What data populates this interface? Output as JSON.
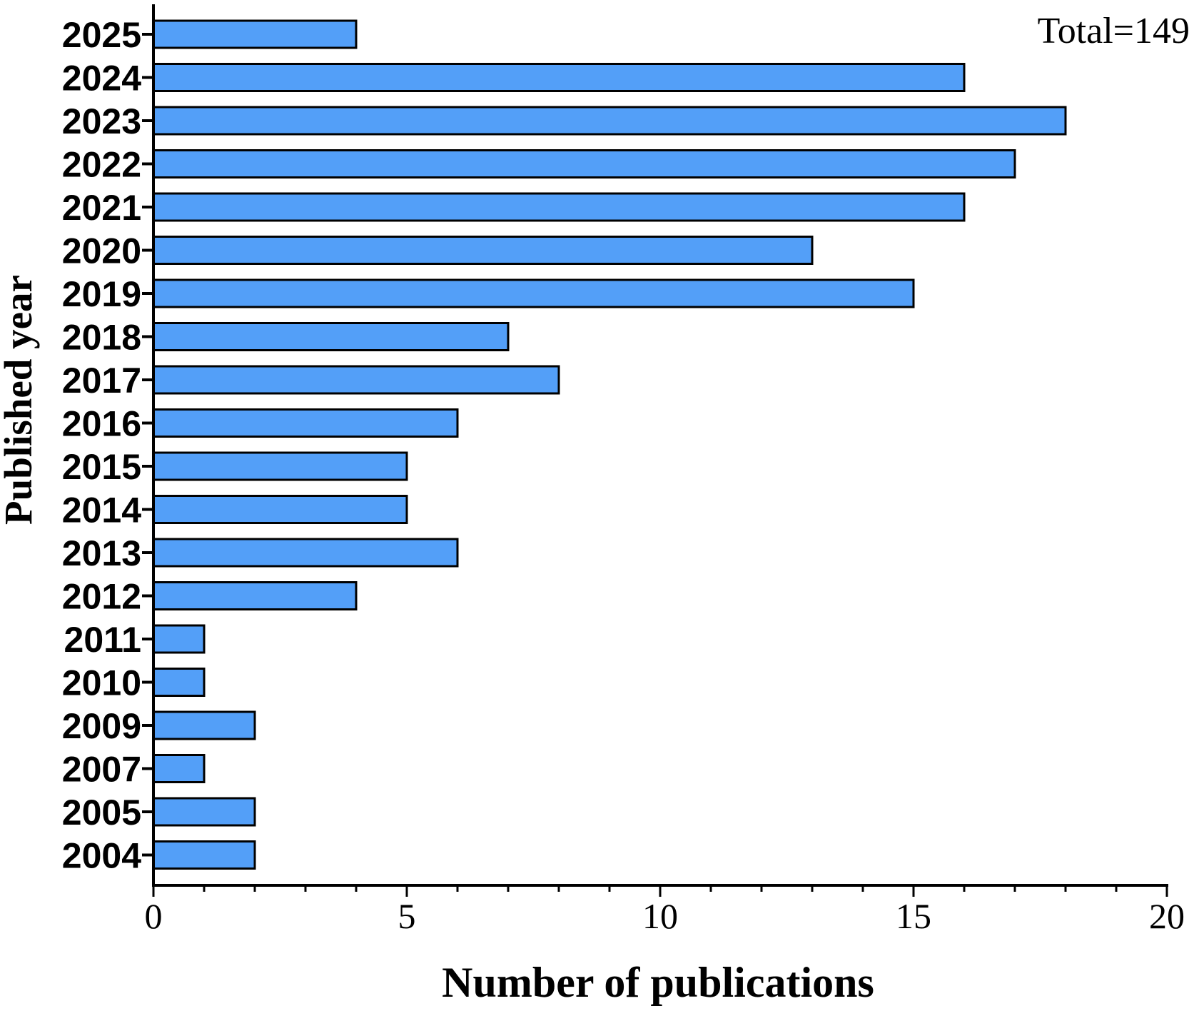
{
  "chart_data": {
    "type": "bar",
    "orientation": "horizontal",
    "categories": [
      "2025",
      "2024",
      "2023",
      "2022",
      "2021",
      "2020",
      "2019",
      "2018",
      "2017",
      "2016",
      "2015",
      "2014",
      "2013",
      "2012",
      "2011",
      "2010",
      "2009",
      "2007",
      "2005",
      "2004"
    ],
    "values": [
      4,
      16,
      18,
      17,
      16,
      13,
      15,
      7,
      8,
      6,
      5,
      5,
      6,
      4,
      1,
      1,
      2,
      1,
      2,
      2
    ],
    "xlabel": "Number of publications",
    "ylabel": "Published year",
    "xlim": [
      0,
      20
    ],
    "x_ticks": [
      "0",
      "5",
      "10",
      "15",
      "20"
    ],
    "annotation": "Total=149",
    "grid": false,
    "bar_color": "#539ff8",
    "edge_color": "#000000"
  }
}
